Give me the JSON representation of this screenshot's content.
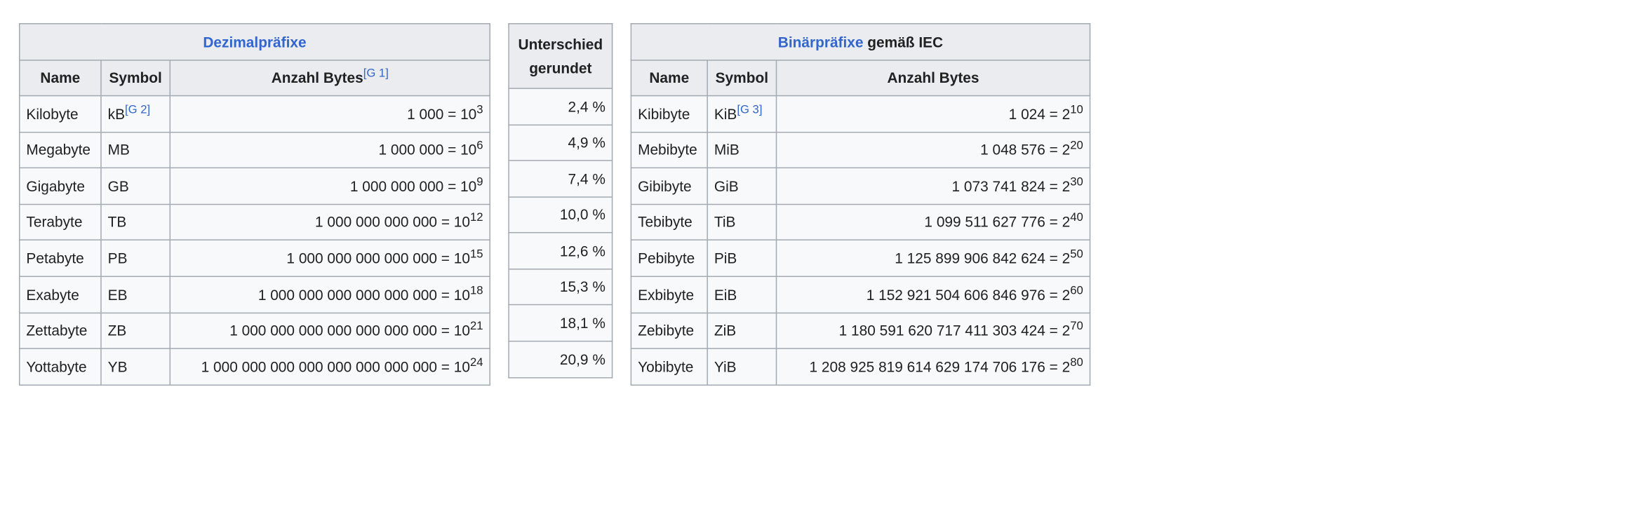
{
  "decimal": {
    "title": "Dezimalpräfixe",
    "headers": {
      "name": "Name",
      "symbol": "Symbol",
      "bytes": "Anzahl Bytes",
      "bytes_ref": "[G 1]"
    },
    "rows": [
      {
        "name": "Kilobyte",
        "symbol": "kB",
        "symbol_ref": "[G 2]",
        "value": "1 000 = 10",
        "exp": "3"
      },
      {
        "name": "Megabyte",
        "symbol": "MB",
        "symbol_ref": "",
        "value": "1 000 000 = 10",
        "exp": "6"
      },
      {
        "name": "Gigabyte",
        "symbol": "GB",
        "symbol_ref": "",
        "value": "1 000 000 000 = 10",
        "exp": "9"
      },
      {
        "name": "Terabyte",
        "symbol": "TB",
        "symbol_ref": "",
        "value": "1 000 000 000 000 = 10",
        "exp": "12"
      },
      {
        "name": "Petabyte",
        "symbol": "PB",
        "symbol_ref": "",
        "value": "1 000 000 000 000 000 = 10",
        "exp": "15"
      },
      {
        "name": "Exabyte",
        "symbol": "EB",
        "symbol_ref": "",
        "value": "1 000 000 000 000 000 000 = 10",
        "exp": "18"
      },
      {
        "name": "Zettabyte",
        "symbol": "ZB",
        "symbol_ref": "",
        "value": "1 000 000 000 000 000 000 000 = 10",
        "exp": "21"
      },
      {
        "name": "Yottabyte",
        "symbol": "YB",
        "symbol_ref": "",
        "value": "1 000 000 000 000 000 000 000 000 = 10",
        "exp": "24"
      }
    ]
  },
  "difference": {
    "header_line1": "Unterschied",
    "header_line2": "gerundet",
    "rows": [
      "2,4 %",
      "4,9 %",
      "7,4 %",
      "10,0 %",
      "12,6 %",
      "15,3 %",
      "18,1 %",
      "20,9 %"
    ]
  },
  "binary": {
    "title_link": "Binärpräfixe",
    "title_rest": " gemäß IEC",
    "headers": {
      "name": "Name",
      "symbol": "Symbol",
      "bytes": "Anzahl Bytes"
    },
    "rows": [
      {
        "name": "Kibibyte",
        "symbol": "KiB",
        "symbol_ref": "[G 3]",
        "value": "1 024 = 2",
        "exp": "10"
      },
      {
        "name": "Mebibyte",
        "symbol": "MiB",
        "symbol_ref": "",
        "value": "1 048 576 = 2",
        "exp": "20"
      },
      {
        "name": "Gibibyte",
        "symbol": "GiB",
        "symbol_ref": "",
        "value": "1 073 741 824 = 2",
        "exp": "30"
      },
      {
        "name": "Tebibyte",
        "symbol": "TiB",
        "symbol_ref": "",
        "value": "1 099 511 627 776 = 2",
        "exp": "40"
      },
      {
        "name": "Pebibyte",
        "symbol": "PiB",
        "symbol_ref": "",
        "value": "1 125 899 906 842 624 = 2",
        "exp": "50"
      },
      {
        "name": "Exbibyte",
        "symbol": "EiB",
        "symbol_ref": "",
        "value": "1 152 921 504 606 846 976 = 2",
        "exp": "60"
      },
      {
        "name": "Zebibyte",
        "symbol": "ZiB",
        "symbol_ref": "",
        "value": "1 180 591 620 717 411 303 424 = 2",
        "exp": "70"
      },
      {
        "name": "Yobibyte",
        "symbol": "YiB",
        "symbol_ref": "",
        "value": "1 208 925 819 614 629 174 706 176 = 2",
        "exp": "80"
      }
    ]
  }
}
